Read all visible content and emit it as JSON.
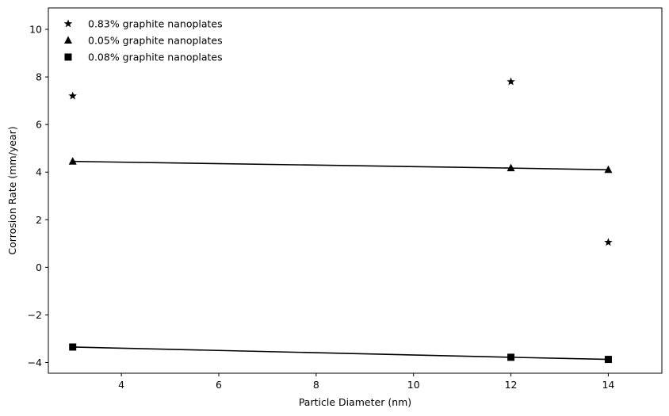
{
  "chart_data": {
    "type": "scatter",
    "title": "",
    "xlabel": "Particle Diameter (nm)",
    "ylabel": "Corrosion Rate (mm/year)",
    "xlim": [
      2.5,
      15.1
    ],
    "ylim": [
      -4.45,
      10.9
    ],
    "xticks": [
      4,
      6,
      8,
      10,
      12,
      14
    ],
    "yticks": [
      -4,
      -2,
      0,
      2,
      4,
      6,
      8,
      10
    ],
    "xtick_labels": [
      "4",
      "6",
      "8",
      "10",
      "12",
      "14"
    ],
    "ytick_labels": [
      "−4",
      "−2",
      "0",
      "2",
      "4",
      "6",
      "8",
      "10"
    ],
    "grid": false,
    "legend_position": "top-left",
    "series": [
      {
        "name": "0.83% graphite nanoplates",
        "marker": "star",
        "color": "#000000",
        "line": false,
        "x": [
          3,
          12,
          14
        ],
        "y": [
          7.2,
          7.8,
          1.05
        ]
      },
      {
        "name": "0.05% graphite nanoplates",
        "marker": "triangle",
        "color": "#000000",
        "line": true,
        "x": [
          3,
          12,
          14
        ],
        "y": [
          4.45,
          4.17,
          4.1
        ]
      },
      {
        "name": "0.08% graphite nanoplates",
        "marker": "square",
        "color": "#000000",
        "line": true,
        "x": [
          3,
          12,
          14
        ],
        "y": [
          -3.35,
          -3.78,
          -3.87
        ]
      }
    ]
  }
}
